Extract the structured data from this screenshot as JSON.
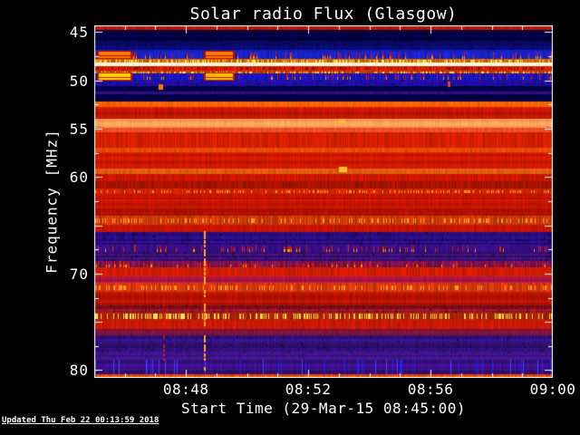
{
  "page": {
    "background": "#000000",
    "text_color": "#ffffff"
  },
  "chart_data": {
    "type": "heatmap",
    "title": "Solar radio Flux (Glasgow)",
    "xlabel": "Start Time (29-Mar-15 08:45:00)",
    "ylabel": "Frequency [MHz]",
    "updated_note": "Updated Thu Feb 22 00:13:59 2018",
    "x_axis": {
      "start": "08:45:00",
      "end": "09:00:00",
      "total_min": 15,
      "minor_every_min": 1,
      "ticks": [
        {
          "label": "08:48",
          "min": 3
        },
        {
          "label": "08:52",
          "min": 7
        },
        {
          "label": "08:56",
          "min": 11
        },
        {
          "label": "09:00",
          "min": 15
        }
      ]
    },
    "y_axis": {
      "min_mhz": 44.3,
      "max_mhz": 80.8,
      "major_every_mhz": 5,
      "minor_every_mhz": 2.5,
      "ticks": [
        {
          "label": "45",
          "mhz": 45
        },
        {
          "label": "50",
          "mhz": 50
        },
        {
          "label": "55",
          "mhz": 55
        },
        {
          "label": "60",
          "mhz": 60
        },
        {
          "label": "70",
          "mhz": 70
        },
        {
          "label": "80",
          "mhz": 80
        }
      ]
    },
    "colormap": "blue-red solar radio intensity",
    "bands": [
      [
        44.3,
        44.77,
        "#c41200",
        "vstripe",
        0.25
      ],
      [
        44.77,
        45.9,
        "#000042",
        "mottle",
        0.55
      ],
      [
        45.9,
        46.83,
        "#0a0a6e",
        "mottle",
        0.45
      ],
      [
        46.83,
        47.02,
        "#1420b4",
        "vstripe",
        0.3
      ],
      [
        47.02,
        47.77,
        "#1822c8",
        "reddash",
        0.35
      ],
      [
        47.77,
        48.15,
        "#d06a00",
        "ydash",
        0.45
      ],
      [
        48.15,
        48.52,
        "#fffae0",
        "vstripe",
        0.12
      ],
      [
        48.52,
        48.99,
        "#d42000",
        "darkdash",
        0.3
      ],
      [
        48.99,
        49.27,
        "#c83c00",
        "ydash",
        0.4
      ],
      [
        49.27,
        49.93,
        "#1616be",
        "reddash",
        0.4
      ],
      [
        49.93,
        50.59,
        "#1e0c96",
        "mottle",
        0.35
      ],
      [
        50.59,
        51.15,
        "#00004c",
        "mottle",
        0.4
      ],
      [
        51.15,
        51.43,
        "#340e86",
        "vstripe",
        0.3
      ],
      [
        51.43,
        52.18,
        "#000048",
        "mottle",
        0.4
      ],
      [
        52.18,
        52.74,
        "#f86400",
        "vstripe",
        0.18
      ],
      [
        52.74,
        53.96,
        "#cc1600",
        "rows",
        0.3
      ],
      [
        53.96,
        54.9,
        "#ffa058",
        "rows",
        0.16
      ],
      [
        54.9,
        55.37,
        "#ee4f20",
        "vstripe",
        0.18
      ],
      [
        55.37,
        56.96,
        "#d41e00",
        "vstripe",
        0.25
      ],
      [
        56.96,
        57.43,
        "#e64a0e",
        "vstripe",
        0.18
      ],
      [
        57.43,
        59.12,
        "#cc1800",
        "rows",
        0.25
      ],
      [
        59.12,
        59.68,
        "#e05a10",
        "vstripe",
        0.18
      ],
      [
        59.68,
        60.43,
        "#cc1600",
        "vstripe",
        0.25
      ],
      [
        60.43,
        61.18,
        "#a61200",
        "vstripe",
        0.3
      ],
      [
        61.18,
        61.75,
        "#ce2400",
        "odash",
        0.3
      ],
      [
        61.75,
        63.25,
        "#c21400",
        "rows",
        0.25
      ],
      [
        63.25,
        64.0,
        "#ac1000",
        "rows",
        0.3
      ],
      [
        64.0,
        64.94,
        "#cc3a08",
        "odash",
        0.4
      ],
      [
        64.94,
        65.69,
        "#c61400",
        "vstripe",
        0.2
      ],
      [
        65.69,
        67.0,
        "#2a0c80",
        "mottle",
        0.4
      ],
      [
        67.0,
        67.75,
        "#360e8a",
        "reddash",
        0.35
      ],
      [
        67.75,
        68.69,
        "#3c1078",
        "mottle",
        0.35
      ],
      [
        68.69,
        69.35,
        "#7c1250",
        "reddash",
        0.45
      ],
      [
        69.35,
        70.28,
        "#d01c00",
        "vstripe",
        0.25
      ],
      [
        70.28,
        70.94,
        "#aa1440",
        "rows",
        0.3
      ],
      [
        70.94,
        71.88,
        "#d4380c",
        "odash",
        0.35
      ],
      [
        71.88,
        73.29,
        "#bc1200",
        "rows",
        0.3
      ],
      [
        73.29,
        74.04,
        "#8c1220",
        "mottle",
        0.4
      ],
      [
        74.04,
        74.79,
        "#aa2208",
        "ydash",
        0.4
      ],
      [
        74.79,
        75.72,
        "#c81800",
        "vstripe",
        0.25
      ],
      [
        75.72,
        76.38,
        "#82123e",
        "rows",
        0.3
      ],
      [
        76.38,
        78.26,
        "#34107e",
        "mottle",
        0.4
      ],
      [
        78.26,
        78.92,
        "#401488",
        "rows",
        0.3
      ],
      [
        78.92,
        80.42,
        "#360e7e",
        "bluelines",
        0.35
      ],
      [
        80.42,
        80.8,
        "#e64a00",
        "vstripe",
        0.3
      ]
    ],
    "features": [
      {
        "type": "rect",
        "t0": 0.15,
        "t1": 1.2,
        "f0": 47.02,
        "f1": 47.72,
        "color": "#ff7c00",
        "rim": "#b40e00"
      },
      {
        "type": "rect",
        "t0": 3.65,
        "t1": 4.55,
        "f0": 47.02,
        "f1": 47.72,
        "color": "#ff7c00",
        "rim": "#b40e00"
      },
      {
        "type": "rect",
        "t0": 0.15,
        "t1": 1.2,
        "f0": 49.3,
        "f1": 49.9,
        "color": "#ffd800",
        "rim": "#c81400"
      },
      {
        "type": "rect",
        "t0": 3.65,
        "t1": 4.55,
        "f0": 49.3,
        "f1": 49.9,
        "color": "#f0c400",
        "rim": "#c81400"
      },
      {
        "type": "dot",
        "t": 2.2,
        "f": 50.7,
        "w": 5,
        "h": 6,
        "color": "#ff7a00"
      },
      {
        "type": "dot",
        "t": 11.62,
        "f": 50.4,
        "w": 3,
        "h": 6,
        "color": "#e84400"
      },
      {
        "type": "dot",
        "t": 8.1,
        "f": 54.25,
        "w": 8,
        "h": 5,
        "color": "#ffb838"
      },
      {
        "type": "dot",
        "t": 8.15,
        "f": 59.2,
        "w": 9,
        "h": 6,
        "color": "#ffc62a"
      },
      {
        "type": "vline",
        "t": 3.59,
        "f0": 65.6,
        "f1": 80.6,
        "w": 2,
        "color": "#ffa81e"
      },
      {
        "type": "vline",
        "t": 2.25,
        "f0": 72.6,
        "f1": 79.2,
        "w": 2,
        "color": "rgba(230,50,0,0.55)"
      }
    ]
  }
}
